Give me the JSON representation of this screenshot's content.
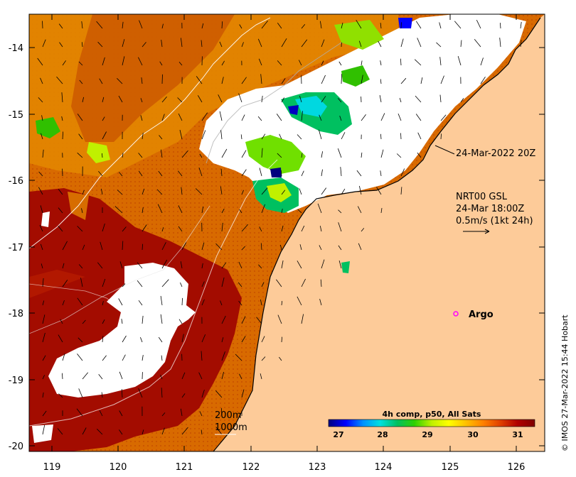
{
  "map": {
    "lat_ticks": [
      "-14",
      "-15",
      "-16",
      "-17",
      "-18",
      "-19",
      "-20"
    ],
    "lon_ticks": [
      "119",
      "120",
      "121",
      "122",
      "123",
      "124",
      "125",
      "126"
    ],
    "timestamp": "24-Mar-2022 20Z",
    "current_title": "NRT00 GSL",
    "current_time": "24-Mar 18:00Z",
    "current_scale": "0.5m/s (1kt 24h)",
    "argo_label": "Argo",
    "isobath_200": "200m",
    "isobath_1000": "1000m",
    "credit": "© IMOS 27-Mar-2022 15:44 Hobart"
  },
  "colorbar": {
    "title": "4h comp, p50, All Sats",
    "ticks": [
      "27",
      "28",
      "29",
      "30",
      "31"
    ],
    "colors": [
      "#00007f",
      "#0000ff",
      "#0090ff",
      "#00e0e0",
      "#00c060",
      "#30d000",
      "#c0f000",
      "#ffff00",
      "#ffc000",
      "#ff8000",
      "#e04000",
      "#b00000",
      "#800000"
    ]
  },
  "colors": {
    "land": "#fdcb99",
    "sst_hot": "#a30c00",
    "sst_warm": "#cc5200",
    "sst_mid": "#e58b00",
    "cloud": "#ffffff",
    "argo": "#ff00ff"
  }
}
